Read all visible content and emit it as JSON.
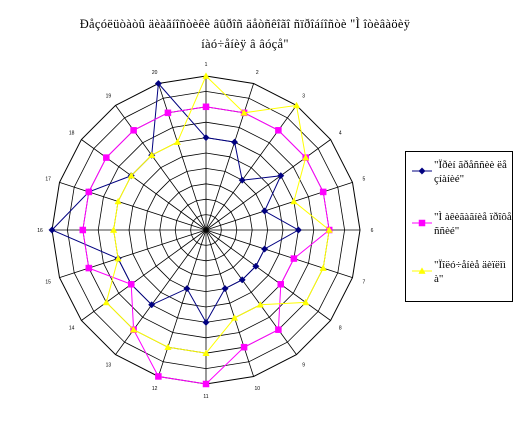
{
  "title_lines": [
    "Đåçóëüòàòû äèàãíîñòèêè âûðîñ äåòñêîãî ñïðîáíîñòè \"Ì îòèâàöèÿ",
    "íàó÷åíèÿ â âóçå\""
  ],
  "colors": {
    "series_1": "#000080",
    "series_2": "#ff00ff",
    "series_3": "#ffff00",
    "grid": "#000000"
  },
  "chart_data": {
    "type": "radar",
    "categories": [
      "1",
      "2",
      "3",
      "4",
      "5",
      "6",
      "7",
      "8",
      "9",
      "10",
      "11",
      "12",
      "13",
      "14",
      "15",
      "16",
      "17",
      "18",
      "19",
      "20"
    ],
    "rlim": [
      0,
      10
    ],
    "rings": 10,
    "legend_position": "right",
    "series": [
      {
        "name": "\"Ïðèí ãðåññèè ëå çíàíèé\"",
        "marker": "diamond",
        "values": [
          6,
          6,
          4,
          6,
          4,
          6,
          4,
          4,
          4,
          4,
          6,
          4,
          6,
          6,
          6,
          10,
          8,
          6,
          6,
          10
        ]
      },
      {
        "name": "\"Ì àêèãàãíèå ïðîôåññèé\"",
        "marker": "square",
        "values": [
          8,
          8,
          8,
          8,
          8,
          8,
          6,
          6,
          8,
          8,
          10,
          10,
          8,
          6,
          8,
          8,
          8,
          8,
          8,
          8
        ]
      },
      {
        "name": "\"Ïîëó÷åíèå äèïëîìà\"",
        "marker": "triangle",
        "values": [
          10,
          8,
          10,
          8,
          6,
          8,
          8,
          8,
          6,
          6,
          8,
          8,
          8,
          8,
          6,
          6,
          6,
          6,
          6,
          6
        ]
      }
    ]
  }
}
